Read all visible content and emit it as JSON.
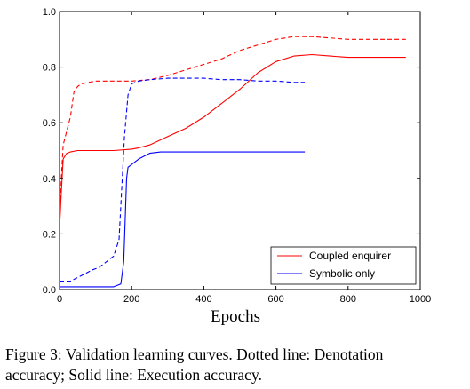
{
  "chart_data": {
    "type": "line",
    "xlabel": "Epochs",
    "ylabel": "",
    "xlim": [
      0,
      1000
    ],
    "ylim": [
      0.0,
      1.0
    ],
    "xticks": [
      "0",
      "200",
      "400",
      "600",
      "800",
      "1000"
    ],
    "yticks": [
      "0.0",
      "0.2",
      "0.4",
      "0.6",
      "0.8",
      "1.0"
    ],
    "grid": false,
    "legend_position": "bottom-right",
    "legend": [
      "Coupled enquirer",
      "Symbolic only"
    ],
    "colors": {
      "coupled": "#ff0000",
      "symbolic": "#0000ff"
    },
    "series": [
      {
        "name": "Coupled enquirer",
        "metric": "denotation",
        "style": "dashed",
        "color": "#ff0000",
        "x": [
          0,
          5,
          10,
          20,
          30,
          40,
          50,
          60,
          80,
          100,
          150,
          200,
          250,
          300,
          350,
          400,
          450,
          500,
          550,
          600,
          650,
          700,
          750,
          800,
          850,
          900,
          950,
          960
        ],
        "y": [
          0.22,
          0.4,
          0.52,
          0.57,
          0.62,
          0.71,
          0.73,
          0.74,
          0.745,
          0.75,
          0.75,
          0.75,
          0.755,
          0.77,
          0.79,
          0.81,
          0.83,
          0.86,
          0.88,
          0.9,
          0.91,
          0.91,
          0.905,
          0.9,
          0.9,
          0.9,
          0.9,
          0.9
        ]
      },
      {
        "name": "Coupled enquirer",
        "metric": "execution",
        "style": "solid",
        "color": "#ff0000",
        "x": [
          0,
          5,
          10,
          20,
          30,
          50,
          100,
          150,
          200,
          220,
          250,
          300,
          350,
          400,
          450,
          500,
          550,
          600,
          650,
          700,
          750,
          800,
          850,
          900,
          960
        ],
        "y": [
          0.22,
          0.35,
          0.47,
          0.49,
          0.495,
          0.5,
          0.5,
          0.5,
          0.505,
          0.51,
          0.52,
          0.55,
          0.58,
          0.62,
          0.67,
          0.72,
          0.78,
          0.82,
          0.84,
          0.845,
          0.84,
          0.835,
          0.835,
          0.835,
          0.835
        ]
      },
      {
        "name": "Symbolic only",
        "metric": "denotation",
        "style": "dashed",
        "color": "#0000ff",
        "x": [
          0,
          30,
          60,
          90,
          110,
          130,
          150,
          165,
          172,
          180,
          190,
          200,
          220,
          250,
          300,
          350,
          400,
          450,
          500,
          550,
          600,
          650,
          680
        ],
        "y": [
          0.03,
          0.03,
          0.05,
          0.07,
          0.08,
          0.1,
          0.12,
          0.18,
          0.35,
          0.55,
          0.7,
          0.74,
          0.75,
          0.755,
          0.76,
          0.76,
          0.76,
          0.755,
          0.755,
          0.75,
          0.75,
          0.745,
          0.745
        ]
      },
      {
        "name": "Symbolic only",
        "metric": "execution",
        "style": "solid",
        "color": "#0000ff",
        "x": [
          0,
          50,
          100,
          150,
          170,
          178,
          182,
          186,
          190,
          200,
          220,
          250,
          280,
          300,
          350,
          400,
          450,
          500,
          550,
          600,
          650,
          680
        ],
        "y": [
          0.01,
          0.01,
          0.01,
          0.01,
          0.02,
          0.1,
          0.25,
          0.4,
          0.44,
          0.45,
          0.47,
          0.49,
          0.495,
          0.495,
          0.495,
          0.495,
          0.495,
          0.495,
          0.495,
          0.495,
          0.495,
          0.495
        ]
      }
    ]
  },
  "caption": {
    "line1": "Figure 3:  Validation learning curves.  Dotted line:  Denotation",
    "line2": "accuracy; Solid line: Execution accuracy."
  }
}
